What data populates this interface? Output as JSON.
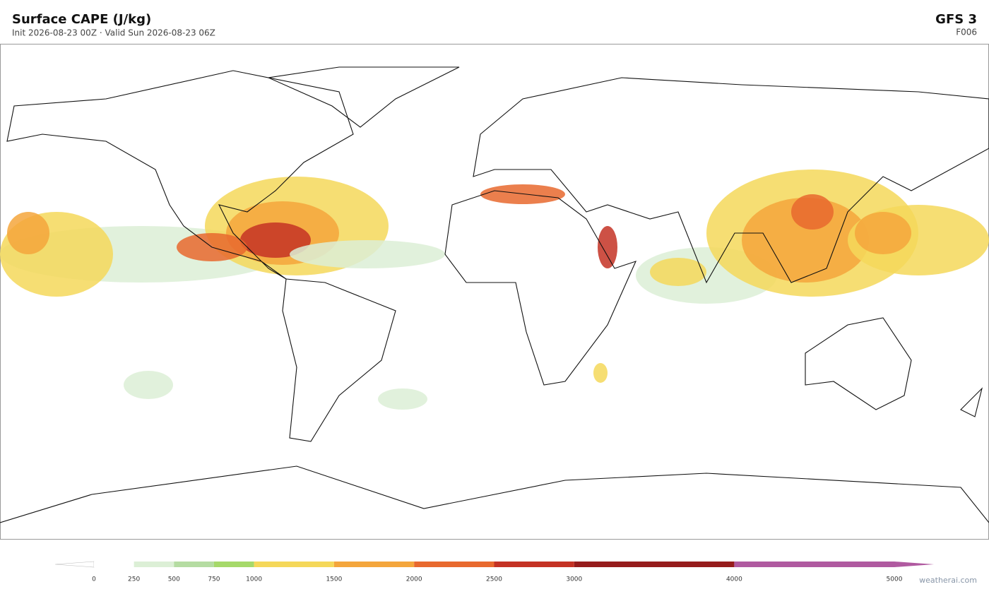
{
  "header": {
    "title": "Surface CAPE  (J/kg)",
    "subtitle": "Init 2026-08-23 00Z  ·  Valid Sun 2026-08-23 06Z",
    "model": "GFS  3",
    "forecast_hour": "F006"
  },
  "colorbar": {
    "levels": [
      0,
      250,
      500,
      750,
      1000,
      1500,
      2000,
      2500,
      3000,
      4000,
      5000
    ],
    "colors": [
      "#ffffff",
      "#dcefd6",
      "#b5dca2",
      "#a6d96a",
      "#f5d85a",
      "#f4a63c",
      "#e8692e",
      "#c43224",
      "#961c1c",
      "#b05aa0"
    ],
    "over_color": "#b05aa0",
    "under_color": "#ffffff"
  },
  "footer": {
    "credit": "weatherai.com"
  }
}
